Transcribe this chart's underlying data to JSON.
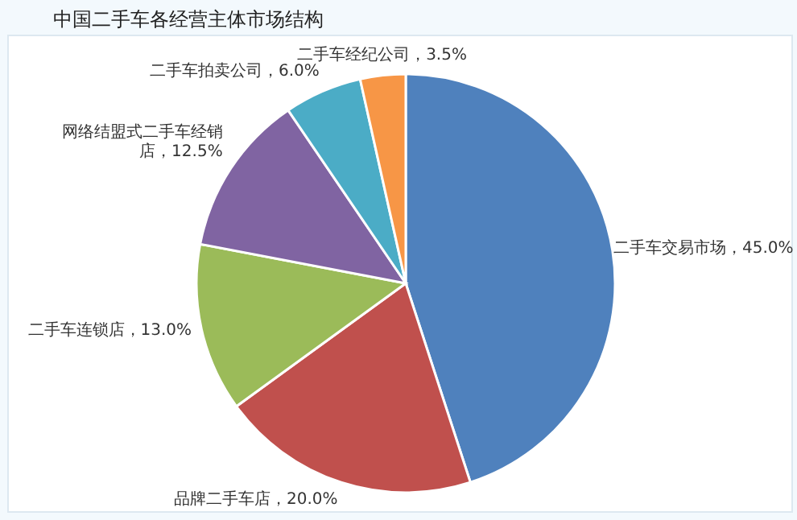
{
  "chart_data": {
    "type": "pie",
    "title": "中国二手车各经营主体市场结构",
    "categories": [
      "二手车交易市场",
      "品牌二手车店",
      "二手车连锁店",
      "网络结盟式二手车经销店",
      "二手车拍卖公司",
      "二手车经纪公司"
    ],
    "values": [
      45.0,
      20.0,
      13.0,
      12.5,
      6.0,
      3.5
    ],
    "value_labels": [
      "，45.0%",
      "，20.0%",
      "，13.0%",
      "，12.5%",
      "，6.0%",
      "，3.5%"
    ],
    "colors": [
      "#4f81bd",
      "#c0504d",
      "#9bbb59",
      "#8064a2",
      "#4bacc6",
      "#f79646"
    ],
    "legend": false
  }
}
